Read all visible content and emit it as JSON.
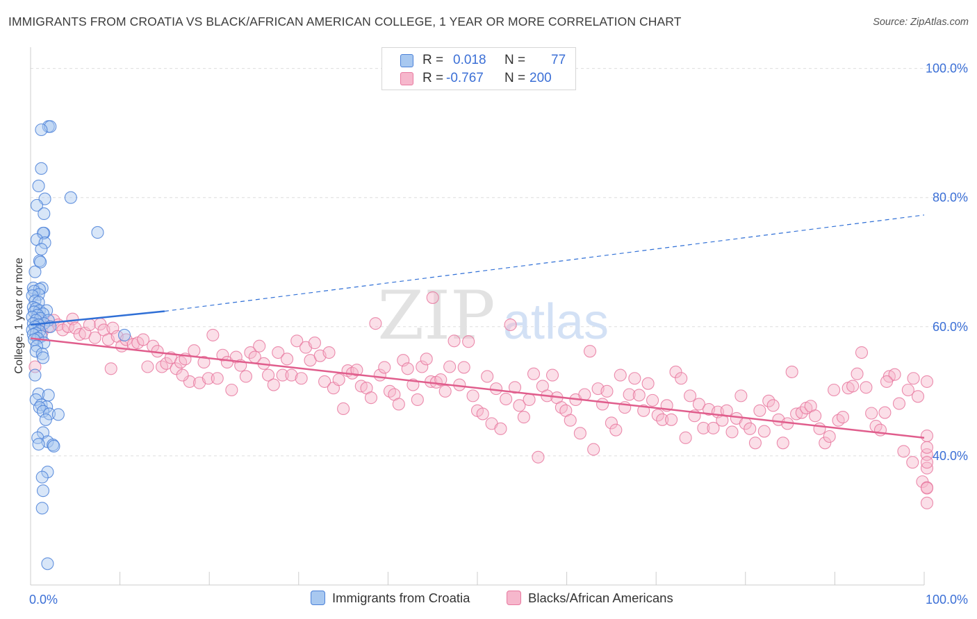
{
  "title": "IMMIGRANTS FROM CROATIA VS BLACK/AFRICAN AMERICAN COLLEGE, 1 YEAR OR MORE CORRELATION CHART",
  "source": "Source: ZipAtlas.com",
  "watermark": {
    "zip": "ZIP",
    "atlas": "atlas"
  },
  "stats": {
    "r_label": "R =",
    "n_label": "N =",
    "rows": [
      {
        "series": "Immigrants from Croatia",
        "r": "0.018",
        "n": "77"
      },
      {
        "series": "Blacks/African Americans",
        "r": "-0.767",
        "n": "200"
      }
    ]
  },
  "legend": {
    "items": [
      "Immigrants from Croatia",
      "Blacks/African Americans"
    ]
  },
  "colors": {
    "blue_fill": "#a8c8f0",
    "blue_stroke": "#4a80d8",
    "blue_line": "#2f6fd6",
    "pink_fill": "#f6b7cc",
    "pink_stroke": "#e8789f",
    "pink_line": "#e05d8c",
    "tick_label": "#3b6fd6",
    "grid": "#dddddd"
  },
  "chart_data": {
    "type": "scatter",
    "xlabel": "",
    "ylabel": "College, 1 year or more",
    "xlim": [
      0,
      100
    ],
    "ylim": [
      20,
      102
    ],
    "x_tick_labels": [
      "0.0%",
      "100.0%"
    ],
    "y_ticks": [
      40,
      60,
      80,
      100
    ],
    "y_tick_labels": [
      "40.0%",
      "60.0%",
      "80.0%",
      "100.0%"
    ],
    "grid": "horizontal dashed",
    "legend_position": "bottom",
    "series": [
      {
        "name": "Immigrants from Croatia",
        "color": "blue",
        "points": [
          [
            2.0,
            91.0
          ],
          [
            2.2,
            91.0
          ],
          [
            1.2,
            90.5
          ],
          [
            1.2,
            84.5
          ],
          [
            0.9,
            81.8
          ],
          [
            1.6,
            79.8
          ],
          [
            4.5,
            80.0
          ],
          [
            0.7,
            78.8
          ],
          [
            1.5,
            77.5
          ],
          [
            1.5,
            74.5
          ],
          [
            1.4,
            74.5
          ],
          [
            7.5,
            74.6
          ],
          [
            0.7,
            73.5
          ],
          [
            1.6,
            73.0
          ],
          [
            1.2,
            72.0
          ],
          [
            1.0,
            70.2
          ],
          [
            1.1,
            70.0
          ],
          [
            0.3,
            66.0
          ],
          [
            1.3,
            66.0
          ],
          [
            1.0,
            65.8
          ],
          [
            0.4,
            65.5
          ],
          [
            0.9,
            65.0
          ],
          [
            0.2,
            64.8
          ],
          [
            0.5,
            64.0
          ],
          [
            0.9,
            63.8
          ],
          [
            0.3,
            63.0
          ],
          [
            0.6,
            62.8
          ],
          [
            1.0,
            62.5
          ],
          [
            1.8,
            62.5
          ],
          [
            0.4,
            62.3
          ],
          [
            1.4,
            62.0
          ],
          [
            0.8,
            61.8
          ],
          [
            0.2,
            61.5
          ],
          [
            1.1,
            61.3
          ],
          [
            0.6,
            61.0
          ],
          [
            2.0,
            61.0
          ],
          [
            0.3,
            60.5
          ],
          [
            1.5,
            60.5
          ],
          [
            0.9,
            60.3
          ],
          [
            0.5,
            60.0
          ],
          [
            2.2,
            60.0
          ],
          [
            0.2,
            59.5
          ],
          [
            1.0,
            59.3
          ],
          [
            0.6,
            59.0
          ],
          [
            0.3,
            58.8
          ],
          [
            1.2,
            58.5
          ],
          [
            10.5,
            58.7
          ],
          [
            0.8,
            58.2
          ],
          [
            0.4,
            58.0
          ],
          [
            1.5,
            57.5
          ],
          [
            0.7,
            57.0
          ],
          [
            0.6,
            56.2
          ],
          [
            1.3,
            55.8
          ],
          [
            1.4,
            55.2
          ],
          [
            0.5,
            52.5
          ],
          [
            0.9,
            49.6
          ],
          [
            2.0,
            49.4
          ],
          [
            0.6,
            48.7
          ],
          [
            1.2,
            47.9
          ],
          [
            1.8,
            47.6
          ],
          [
            1.0,
            47.5
          ],
          [
            1.4,
            46.9
          ],
          [
            2.1,
            46.5
          ],
          [
            3.1,
            46.4
          ],
          [
            1.7,
            45.6
          ],
          [
            1.4,
            43.6
          ],
          [
            0.8,
            42.8
          ],
          [
            1.9,
            42.2
          ],
          [
            0.9,
            41.8
          ],
          [
            2.5,
            41.7
          ],
          [
            2.6,
            41.5
          ],
          [
            1.9,
            37.5
          ],
          [
            1.3,
            36.7
          ],
          [
            1.4,
            34.6
          ],
          [
            1.3,
            31.9
          ],
          [
            1.9,
            23.3
          ],
          [
            0.5,
            68.5
          ]
        ],
        "trend_solid": [
          [
            0,
            60.3
          ],
          [
            15,
            62.4
          ]
        ],
        "trend_dashed": [
          [
            15,
            62.4
          ],
          [
            100,
            77.3
          ]
        ]
      },
      {
        "name": "Blacks/African Americans",
        "color": "pink",
        "points": [
          [
            0.5,
            53.8
          ],
          [
            1.0,
            61.0
          ],
          [
            1.3,
            59.2
          ],
          [
            2.0,
            60.0
          ],
          [
            2.6,
            61.0
          ],
          [
            3.1,
            60.3
          ],
          [
            3.6,
            59.5
          ],
          [
            4.2,
            60.0
          ],
          [
            4.7,
            61.2
          ],
          [
            5.0,
            59.8
          ],
          [
            5.5,
            58.8
          ],
          [
            6.1,
            59.0
          ],
          [
            6.6,
            60.3
          ],
          [
            7.2,
            58.3
          ],
          [
            7.8,
            60.4
          ],
          [
            8.2,
            59.5
          ],
          [
            8.7,
            58.0
          ],
          [
            9.2,
            59.8
          ],
          [
            9.7,
            58.5
          ],
          [
            10.2,
            57.0
          ],
          [
            10.7,
            58.0
          ],
          [
            11.5,
            57.3
          ],
          [
            12.0,
            57.5
          ],
          [
            12.6,
            58.0
          ],
          [
            13.1,
            53.8
          ],
          [
            13.7,
            57.0
          ],
          [
            14.2,
            56.2
          ],
          [
            14.7,
            53.8
          ],
          [
            15.2,
            54.3
          ],
          [
            15.7,
            55.2
          ],
          [
            16.3,
            53.5
          ],
          [
            16.8,
            54.5
          ],
          [
            17.3,
            55.0
          ],
          [
            17.8,
            51.5
          ],
          [
            18.3,
            56.3
          ],
          [
            18.9,
            51.3
          ],
          [
            19.4,
            54.5
          ],
          [
            19.9,
            52.0
          ],
          [
            20.4,
            58.7
          ],
          [
            20.9,
            52.0
          ],
          [
            21.5,
            55.6
          ],
          [
            22.0,
            54.5
          ],
          [
            22.5,
            50.2
          ],
          [
            23.0,
            55.3
          ],
          [
            23.5,
            54.0
          ],
          [
            24.1,
            52.3
          ],
          [
            24.6,
            56.0
          ],
          [
            25.1,
            55.3
          ],
          [
            25.6,
            57.0
          ],
          [
            26.1,
            54.3
          ],
          [
            26.6,
            52.5
          ],
          [
            27.2,
            51.0
          ],
          [
            27.7,
            56.0
          ],
          [
            28.2,
            52.5
          ],
          [
            28.7,
            55.0
          ],
          [
            29.2,
            52.5
          ],
          [
            29.8,
            57.8
          ],
          [
            30.3,
            52.0
          ],
          [
            30.8,
            56.8
          ],
          [
            31.3,
            54.8
          ],
          [
            31.8,
            57.5
          ],
          [
            32.4,
            55.5
          ],
          [
            32.9,
            51.5
          ],
          [
            33.4,
            56.0
          ],
          [
            33.9,
            50.5
          ],
          [
            34.5,
            51.8
          ],
          [
            35.0,
            47.3
          ],
          [
            35.5,
            53.2
          ],
          [
            36.0,
            52.8
          ],
          [
            36.5,
            53.3
          ],
          [
            37.0,
            50.8
          ],
          [
            37.6,
            50.5
          ],
          [
            38.1,
            49.0
          ],
          [
            38.6,
            60.5
          ],
          [
            39.1,
            52.5
          ],
          [
            39.6,
            53.7
          ],
          [
            40.2,
            50.0
          ],
          [
            40.7,
            49.5
          ],
          [
            41.2,
            48.0
          ],
          [
            41.7,
            54.8
          ],
          [
            42.2,
            53.5
          ],
          [
            42.8,
            51.0
          ],
          [
            43.3,
            48.7
          ],
          [
            43.8,
            53.8
          ],
          [
            44.3,
            55.0
          ],
          [
            44.8,
            51.5
          ],
          [
            45.4,
            51.4
          ],
          [
            45.9,
            51.8
          ],
          [
            46.4,
            50.0
          ],
          [
            46.9,
            53.8
          ],
          [
            47.4,
            57.8
          ],
          [
            48.0,
            51.0
          ],
          [
            48.5,
            53.7
          ],
          [
            49.0,
            57.7
          ],
          [
            49.5,
            49.3
          ],
          [
            50.0,
            47.0
          ],
          [
            50.6,
            46.5
          ],
          [
            51.1,
            52.3
          ],
          [
            51.6,
            45.0
          ],
          [
            52.1,
            50.4
          ],
          [
            52.6,
            44.2
          ],
          [
            53.2,
            48.8
          ],
          [
            53.7,
            60.3
          ],
          [
            54.2,
            50.6
          ],
          [
            54.7,
            47.8
          ],
          [
            55.2,
            46.0
          ],
          [
            55.8,
            48.7
          ],
          [
            56.3,
            52.7
          ],
          [
            56.8,
            39.8
          ],
          [
            57.3,
            50.8
          ],
          [
            57.8,
            49.3
          ],
          [
            58.4,
            52.5
          ],
          [
            58.9,
            49.0
          ],
          [
            59.4,
            47.5
          ],
          [
            59.9,
            47.0
          ],
          [
            60.4,
            45.5
          ],
          [
            61.0,
            48.7
          ],
          [
            61.5,
            43.5
          ],
          [
            62.0,
            49.5
          ],
          [
            62.6,
            56.2
          ],
          [
            63.0,
            41.0
          ],
          [
            63.5,
            50.4
          ],
          [
            64.0,
            48.0
          ],
          [
            64.5,
            50.0
          ],
          [
            65.0,
            45.1
          ],
          [
            65.5,
            44.0
          ],
          [
            66.0,
            52.5
          ],
          [
            66.5,
            47.5
          ],
          [
            67.0,
            49.5
          ],
          [
            67.6,
            52.0
          ],
          [
            68.1,
            49.4
          ],
          [
            68.6,
            47.0
          ],
          [
            69.1,
            51.2
          ],
          [
            69.6,
            48.6
          ],
          [
            70.2,
            46.3
          ],
          [
            70.7,
            45.6
          ],
          [
            71.2,
            47.8
          ],
          [
            71.7,
            45.6
          ],
          [
            72.2,
            53.0
          ],
          [
            72.8,
            52.0
          ],
          [
            73.3,
            42.8
          ],
          [
            73.8,
            49.3
          ],
          [
            74.3,
            46.2
          ],
          [
            74.8,
            48.0
          ],
          [
            75.3,
            44.3
          ],
          [
            75.9,
            47.2
          ],
          [
            76.4,
            44.3
          ],
          [
            76.9,
            46.8
          ],
          [
            77.4,
            45.5
          ],
          [
            77.9,
            47.0
          ],
          [
            78.5,
            43.7
          ],
          [
            79.0,
            45.8
          ],
          [
            79.5,
            49.3
          ],
          [
            80.0,
            45.0
          ],
          [
            80.5,
            44.2
          ],
          [
            81.1,
            42.0
          ],
          [
            81.6,
            47.0
          ],
          [
            82.1,
            43.8
          ],
          [
            82.6,
            48.5
          ],
          [
            83.1,
            47.8
          ],
          [
            83.7,
            45.6
          ],
          [
            84.2,
            42.0
          ],
          [
            84.7,
            45.0
          ],
          [
            85.2,
            53.0
          ],
          [
            85.7,
            46.5
          ],
          [
            86.3,
            46.7
          ],
          [
            86.8,
            47.4
          ],
          [
            87.3,
            47.7
          ],
          [
            87.8,
            46.2
          ],
          [
            88.3,
            44.2
          ],
          [
            88.9,
            42.0
          ],
          [
            89.4,
            43.0
          ],
          [
            89.9,
            50.2
          ],
          [
            90.4,
            45.5
          ],
          [
            90.9,
            46.0
          ],
          [
            91.5,
            50.5
          ],
          [
            92.0,
            50.8
          ],
          [
            92.5,
            52.7
          ],
          [
            93.0,
            56.0
          ],
          [
            93.5,
            50.6
          ],
          [
            94.1,
            46.6
          ],
          [
            94.6,
            44.6
          ],
          [
            95.1,
            44.0
          ],
          [
            95.6,
            46.7
          ],
          [
            96.1,
            52.3
          ],
          [
            96.7,
            52.6
          ],
          [
            97.2,
            48.1
          ],
          [
            97.7,
            40.7
          ],
          [
            98.2,
            50.2
          ],
          [
            98.7,
            39.0
          ],
          [
            99.3,
            49.2
          ],
          [
            99.8,
            36.0
          ],
          [
            100.3,
            40.2
          ],
          [
            100.8,
            35.1
          ],
          [
            101.3,
            43.1
          ],
          [
            101.8,
            41.3
          ],
          [
            102.4,
            38.1
          ],
          [
            102.9,
            32.7
          ],
          [
            103.4,
            35.0
          ],
          [
            103.9,
            51.5
          ],
          [
            104.4,
            39.0
          ],
          [
            98.8,
            52.0
          ],
          [
            95.8,
            51.5
          ],
          [
            45.0,
            64.5
          ],
          [
            9.0,
            53.5
          ],
          [
            17.0,
            52.5
          ]
        ],
        "trend_solid": [
          [
            0,
            58.2
          ],
          [
            100,
            42.8
          ]
        ]
      }
    ]
  }
}
